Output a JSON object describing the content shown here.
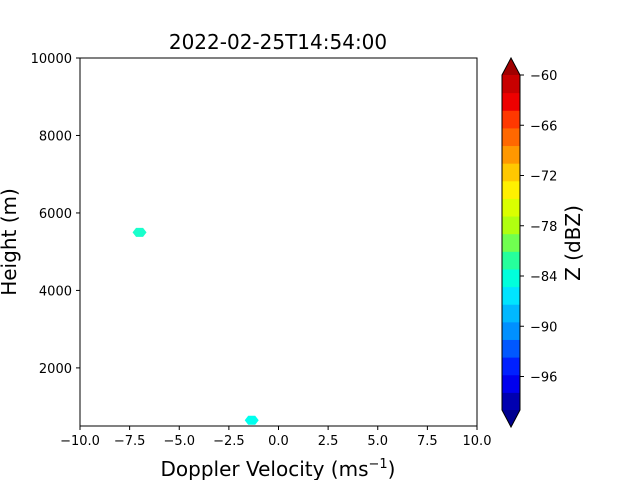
{
  "chart_data": {
    "type": "heatmap",
    "title": "2022-02-25T14:54:00",
    "xlabel": "Doppler Velocity (ms",
    "xlabel_sup": "−1",
    "xlabel_close": ")",
    "ylabel": "Height (m)",
    "xlim": [
      -10,
      10
    ],
    "ylim": [
      500,
      10000
    ],
    "xticks": [
      -10,
      -7.5,
      -5,
      -2.5,
      0,
      2.5,
      5,
      7.5,
      10
    ],
    "xtick_labels": [
      "−10.0",
      "−7.5",
      "−5.0",
      "−2.5",
      "0.0",
      "2.5",
      "5.0",
      "7.5",
      "10.0"
    ],
    "yticks": [
      2000,
      4000,
      6000,
      8000,
      10000
    ],
    "ytick_labels": [
      "2000",
      "4000",
      "6000",
      "8000",
      "10000"
    ],
    "points": [
      {
        "x": -7.0,
        "y": 5500,
        "z": -84,
        "color": "#19ffcc"
      },
      {
        "x": -1.35,
        "y": 650,
        "z": -86,
        "color": "#00ffee"
      }
    ],
    "colorbar": {
      "label": "Z (dBZ)",
      "vmin": -100,
      "vmax": -60,
      "ticks": [
        -60,
        -66,
        -72,
        -78,
        -84,
        -90,
        -96
      ],
      "tick_labels": [
        "−60",
        "−66",
        "−72",
        "−78",
        "−84",
        "−90",
        "−96"
      ],
      "under_color": "#000090",
      "over_color": "#a00000",
      "colors": [
        "#0000b0",
        "#0000ee",
        "#0020ff",
        "#0058ff",
        "#0090ff",
        "#00b8ff",
        "#00e4ff",
        "#00ffdc",
        "#26ff9c",
        "#70ff50",
        "#b0ff10",
        "#daff00",
        "#fff000",
        "#ffc800",
        "#ff9800",
        "#ff6800",
        "#ff3800",
        "#ee0000",
        "#c80000"
      ]
    }
  }
}
